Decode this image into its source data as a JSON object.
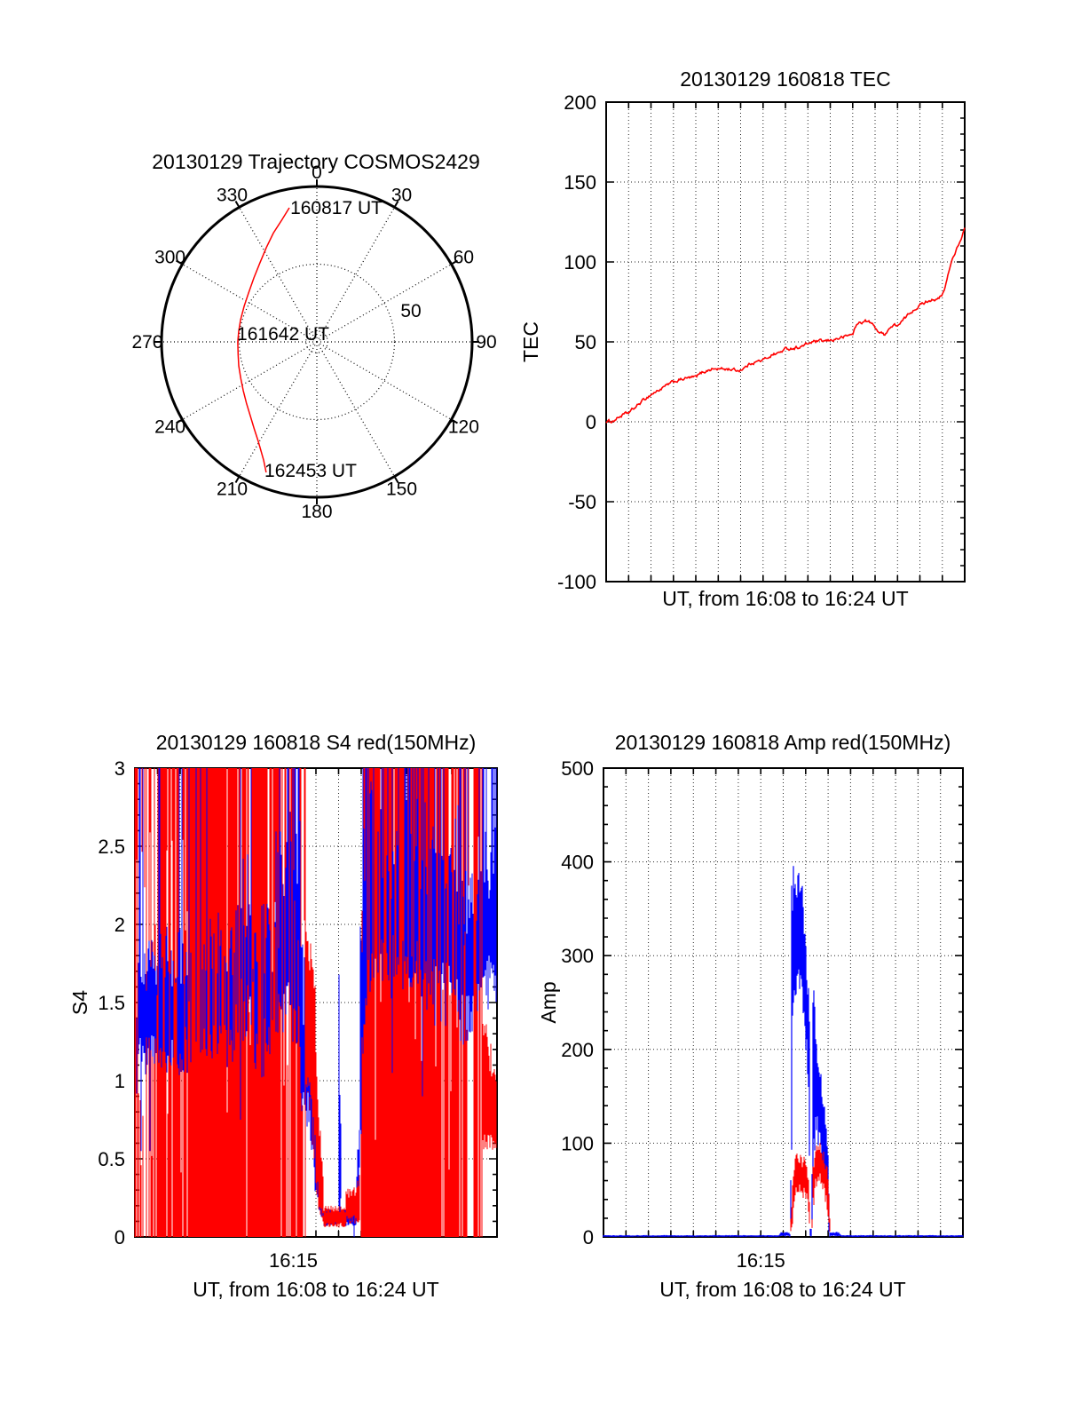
{
  "figure": {
    "background": "#ffffff"
  },
  "colors": {
    "red": "#ff0000",
    "blue": "#0000ff",
    "axis": "#000000",
    "grid": "#000000"
  },
  "chart_data": [
    {
      "id": "trajectory",
      "type": "line",
      "polar": true,
      "title": "20130129 Trajectory COSMOS2429",
      "azimuth_tick_labels": [
        "0",
        "30",
        "60",
        "90",
        "120",
        "150",
        "180",
        "210",
        "240",
        "270",
        "300",
        "330"
      ],
      "azimuth_tick_degrees": [
        0,
        30,
        60,
        90,
        120,
        150,
        180,
        210,
        240,
        270,
        300,
        330
      ],
      "elevation_ring_label": "50",
      "ring_label_pos": {
        "x": 0.606,
        "y": -0.16
      },
      "rings": [
        0.5,
        0.07
      ],
      "series_color": "#ff0000",
      "annotations": [
        {
          "text": "160817 UT",
          "x": -0.171,
          "y": -0.823
        },
        {
          "text": "161642 UT",
          "x": -0.514,
          "y": -0.011
        },
        {
          "text": "162453 UT",
          "x": -0.337,
          "y": 0.869
        }
      ],
      "trajectory_points": [
        [
          -0.177,
          -0.863
        ],
        [
          -0.225,
          -0.785
        ],
        [
          -0.28,
          -0.7
        ],
        [
          -0.325,
          -0.607
        ],
        [
          -0.366,
          -0.509
        ],
        [
          -0.405,
          -0.412
        ],
        [
          -0.44,
          -0.314
        ],
        [
          -0.468,
          -0.23
        ],
        [
          -0.491,
          -0.143
        ],
        [
          -0.503,
          -0.07
        ],
        [
          -0.509,
          0.0
        ],
        [
          -0.507,
          0.08
        ],
        [
          -0.503,
          0.154
        ],
        [
          -0.49,
          0.235
        ],
        [
          -0.474,
          0.314
        ],
        [
          -0.453,
          0.395
        ],
        [
          -0.429,
          0.474
        ],
        [
          -0.404,
          0.557
        ],
        [
          -0.377,
          0.64
        ],
        [
          -0.36,
          0.7
        ],
        [
          -0.343,
          0.76
        ],
        [
          -0.326,
          0.84
        ]
      ]
    },
    {
      "id": "tec",
      "type": "line",
      "title": "20130129 160818 TEC",
      "ylabel": "TEC",
      "xlabel": "UT, from 16:08 to 16:24 UT",
      "ylim": [
        -100,
        200
      ],
      "yticks": [
        200,
        150,
        100,
        50,
        0,
        -50,
        -100
      ],
      "ytick_labels": [
        "200",
        "150",
        "100",
        "50",
        "0",
        "-50",
        "-100"
      ],
      "y_minor_step": 10,
      "x_minutes": [
        0,
        16
      ],
      "color": "#ff0000",
      "points": [
        [
          0,
          0
        ],
        [
          0.3,
          0.5
        ],
        [
          0.7,
          4
        ],
        [
          1,
          5.5
        ],
        [
          1.3,
          9
        ],
        [
          1.7,
          14
        ],
        [
          2,
          17
        ],
        [
          2.5,
          21
        ],
        [
          3,
          25
        ],
        [
          3.5,
          27
        ],
        [
          4,
          28
        ],
        [
          4.3,
          31
        ],
        [
          4.7,
          33
        ],
        [
          5.1,
          33
        ],
        [
          5.5,
          33
        ],
        [
          5.9,
          32
        ],
        [
          6.2,
          34
        ],
        [
          6.5,
          37
        ],
        [
          7,
          38.5
        ],
        [
          7.4,
          42
        ],
        [
          7.7,
          43
        ],
        [
          8,
          45.5
        ],
        [
          8.3,
          46
        ],
        [
          8.7,
          47
        ],
        [
          9.2,
          50
        ],
        [
          9.9,
          50.5
        ],
        [
          10.3,
          52
        ],
        [
          10.6,
          53
        ],
        [
          11,
          55
        ],
        [
          11.15,
          60
        ],
        [
          11.3,
          62
        ],
        [
          11.6,
          63
        ],
        [
          11.8,
          62
        ],
        [
          12,
          59
        ],
        [
          12.2,
          56
        ],
        [
          12.4,
          54.5
        ],
        [
          12.6,
          58
        ],
        [
          12.8,
          60
        ],
        [
          13.1,
          61
        ],
        [
          13.35,
          65
        ],
        [
          13.7,
          70
        ],
        [
          14,
          73
        ],
        [
          14.4,
          76
        ],
        [
          14.6,
          77
        ],
        [
          14.75,
          76
        ],
        [
          15,
          79
        ],
        [
          15.15,
          85
        ],
        [
          15.3,
          95
        ],
        [
          15.5,
          104
        ],
        [
          15.7,
          110
        ],
        [
          15.85,
          113
        ],
        [
          16,
          122
        ]
      ]
    },
    {
      "id": "s4",
      "type": "noise-line",
      "title": "20130129 160818 S4 red(150MHz)",
      "ylabel": "S4",
      "xlabel": "UT, from 16:08 to 16:24 UT",
      "ylim": [
        0,
        3
      ],
      "yticks": [
        3,
        2.5,
        2,
        1.5,
        1,
        0.5,
        0
      ],
      "ytick_labels": [
        "3",
        "2.5",
        "2",
        "1.5",
        "1",
        "0.5",
        "0"
      ],
      "y_minor_step": 0.1,
      "x_minutes": [
        0,
        16
      ],
      "xtick": {
        "label": "16:15",
        "minute": 7
      },
      "series_colors": {
        "red_150MHz": "#ff0000",
        "blue": "#0000ff"
      },
      "red_stripe_segments": [
        [
          0,
          0.25,
          0.35
        ],
        [
          0.25,
          1.0,
          0.1
        ],
        [
          1.0,
          1.35,
          0.8
        ],
        [
          1.35,
          2.35,
          0.45
        ],
        [
          2.35,
          2.65,
          0.85
        ],
        [
          2.65,
          4.45,
          0.9
        ],
        [
          4.45,
          5.2,
          0.5
        ],
        [
          5.2,
          6.4,
          0.72
        ],
        [
          6.4,
          7.3,
          0.45
        ],
        [
          7.3,
          7.6,
          0.2
        ],
        [
          10.0,
          12.35,
          0.85
        ],
        [
          12.35,
          13.5,
          0.75
        ],
        [
          13.5,
          14.6,
          0.5
        ],
        [
          14.6,
          15.35,
          0.33
        ]
      ],
      "red_band_segments": [
        [
          7.5,
          8.0,
          1.0,
          2.2,
          0.4,
          1.6
        ],
        [
          8.0,
          8.35,
          0.2,
          1.2,
          0.08,
          0.3
        ],
        [
          8.35,
          9.3,
          0.06,
          0.2,
          0.06,
          0.2
        ],
        [
          9.3,
          9.7,
          0.08,
          0.32,
          0.08,
          0.32
        ],
        [
          9.7,
          9.95,
          0.07,
          0.25,
          0.1,
          0.45
        ],
        [
          15.35,
          16,
          0.55,
          1.5,
          0.5,
          1.05
        ]
      ],
      "blue_band_segments": [
        [
          0,
          0.1,
          0.0,
          1.0,
          0.9,
          1.7,
          0
        ],
        [
          0.1,
          2.1,
          1.0,
          2.0,
          1.0,
          2.0,
          0.1
        ],
        [
          2.1,
          4.4,
          1.05,
          2.05,
          1.05,
          2.1,
          0.12
        ],
        [
          4.4,
          5.2,
          1.2,
          2.6,
          1.2,
          2.6,
          0.22
        ],
        [
          5.2,
          6.2,
          1.0,
          2.1,
          1.0,
          2.2,
          0.12
        ],
        [
          6.2,
          7.3,
          1.2,
          2.7,
          1.2,
          2.8,
          0.28
        ],
        [
          7.3,
          7.9,
          0.8,
          2.0,
          0.5,
          1.5,
          0.04
        ],
        [
          7.9,
          8.35,
          0.2,
          1.1,
          0.08,
          0.3,
          0
        ],
        [
          8.35,
          9.0,
          0.07,
          0.18,
          0.07,
          0.18,
          0
        ],
        [
          9.0,
          9.1,
          0.1,
          2.2,
          0.1,
          0.9,
          0
        ],
        [
          9.1,
          9.8,
          0.07,
          0.18,
          0.07,
          0.18,
          0
        ],
        [
          9.8,
          9.95,
          0.1,
          0.6,
          0.3,
          1.0,
          0
        ],
        [
          9.95,
          10.25,
          0.5,
          2.6,
          1.2,
          3.0,
          0.25
        ],
        [
          10.25,
          12.6,
          1.5,
          2.95,
          1.5,
          2.95,
          0.4
        ],
        [
          12.6,
          14.3,
          1.35,
          2.8,
          1.35,
          2.8,
          0.3
        ],
        [
          14.3,
          15.3,
          1.2,
          2.5,
          1.3,
          2.5,
          0.18
        ],
        [
          15.3,
          16,
          1.4,
          2.6,
          1.5,
          2.7,
          0.22
        ]
      ]
    },
    {
      "id": "amp",
      "type": "envelope-line",
      "title": "20130129 160818 Amp red(150MHz)",
      "ylabel": "Amp",
      "xlabel": "UT, from 16:08 to 16:24 UT",
      "ylim": [
        0,
        500
      ],
      "yticks": [
        500,
        400,
        300,
        200,
        100,
        0
      ],
      "ytick_labels": [
        "500",
        "400",
        "300",
        "200",
        "100",
        "0"
      ],
      "y_minor_step": 20,
      "x_minutes": [
        0,
        16
      ],
      "xtick": {
        "label": "16:15",
        "minute": 7
      },
      "series_colors": {
        "red_150MHz": "#ff0000",
        "blue": "#0000ff"
      },
      "blue_envelope": [
        [
          0,
          0,
          2
        ],
        [
          7.8,
          0,
          2
        ],
        [
          7.9,
          0,
          6
        ],
        [
          8.25,
          0,
          5
        ],
        [
          8.33,
          0,
          2
        ],
        [
          8.36,
          0,
          380
        ],
        [
          8.42,
          240,
          400
        ],
        [
          8.55,
          260,
          410
        ],
        [
          8.7,
          250,
          400
        ],
        [
          8.85,
          240,
          385
        ],
        [
          8.95,
          230,
          340
        ],
        [
          9.05,
          170,
          310
        ],
        [
          9.12,
          130,
          270
        ],
        [
          9.18,
          60,
          230
        ],
        [
          9.2,
          0,
          10
        ],
        [
          9.28,
          0,
          10
        ],
        [
          9.3,
          60,
          300
        ],
        [
          9.4,
          90,
          270
        ],
        [
          9.5,
          90,
          230
        ],
        [
          9.62,
          80,
          200
        ],
        [
          9.75,
          70,
          165
        ],
        [
          9.88,
          55,
          135
        ],
        [
          9.98,
          35,
          100
        ],
        [
          10.03,
          5,
          60
        ],
        [
          10.06,
          0,
          6
        ],
        [
          10.45,
          0,
          6
        ],
        [
          10.6,
          0,
          2
        ],
        [
          16,
          0,
          2
        ]
      ],
      "red_envelope": [
        [
          0,
          0,
          0
        ],
        [
          8.3,
          0,
          0
        ],
        [
          8.38,
          5,
          45
        ],
        [
          8.5,
          35,
          85
        ],
        [
          8.65,
          45,
          95
        ],
        [
          8.8,
          40,
          90
        ],
        [
          9.0,
          40,
          85
        ],
        [
          9.1,
          30,
          75
        ],
        [
          9.17,
          5,
          40
        ],
        [
          9.2,
          0,
          0
        ],
        [
          9.27,
          0,
          0
        ],
        [
          9.32,
          25,
          80
        ],
        [
          9.45,
          50,
          95
        ],
        [
          9.55,
          60,
          105
        ],
        [
          9.68,
          55,
          100
        ],
        [
          9.8,
          45,
          92
        ],
        [
          9.95,
          30,
          80
        ],
        [
          10.05,
          5,
          45
        ],
        [
          10.1,
          0,
          0
        ],
        [
          16,
          0,
          0
        ]
      ]
    }
  ]
}
